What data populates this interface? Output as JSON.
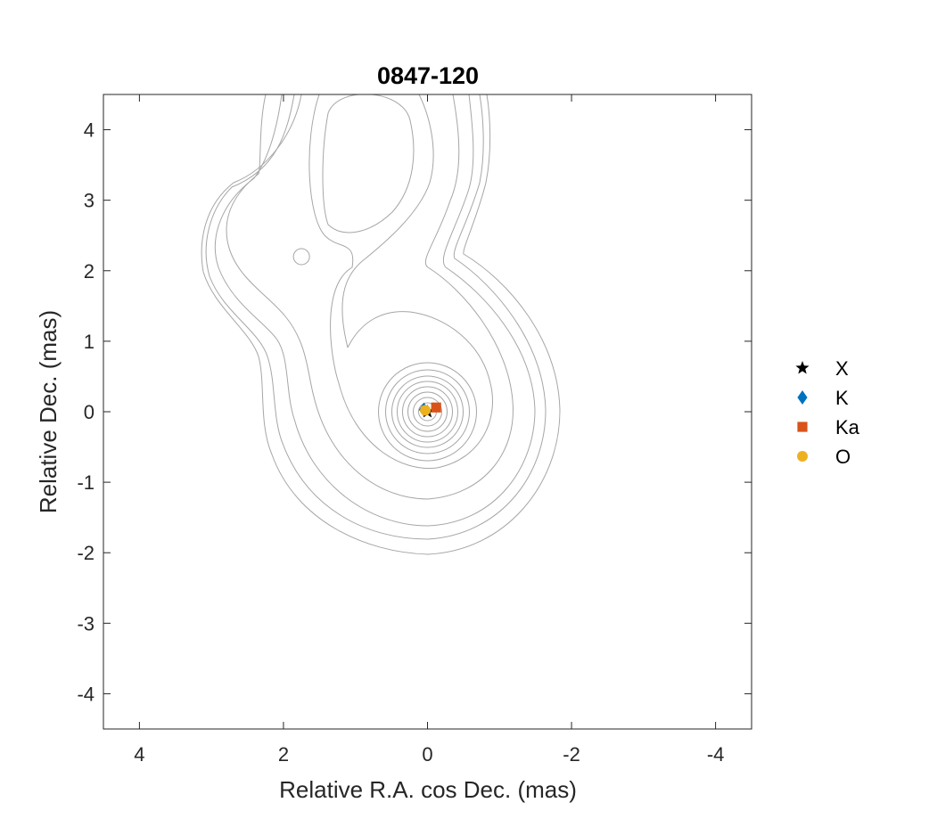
{
  "chart_data": {
    "type": "scatter",
    "title": "0847-120",
    "xlabel": "Relative R.A. cos Dec. (mas)",
    "ylabel": "Relative Dec. (mas)",
    "xlim": [
      4.5,
      -4.5
    ],
    "ylim": [
      -4.5,
      4.5
    ],
    "x_reversed": true,
    "xticks": [
      4,
      2,
      0,
      -2,
      -4
    ],
    "yticks": [
      -4,
      -3,
      -2,
      -1,
      0,
      1,
      2,
      3,
      4
    ],
    "xtick_labels": [
      "4",
      "2",
      "0",
      "-2",
      "-4"
    ],
    "ytick_labels": [
      "-4",
      "-3",
      "-2",
      "-1",
      "0",
      "1",
      "2",
      "3",
      "4"
    ],
    "grid": false,
    "legend_position": "right",
    "background_contours": "Brightness contours of the source (grey lines)",
    "series": [
      {
        "name": "X",
        "marker": "star",
        "color": "#000000",
        "x": 0.0,
        "y": 0.0
      },
      {
        "name": "K",
        "marker": "diamond",
        "color": "#0072BD",
        "x": 0.05,
        "y": 0.03
      },
      {
        "name": "Ka",
        "marker": "square",
        "color": "#D95319",
        "x": -0.12,
        "y": 0.06
      },
      {
        "name": "O",
        "marker": "circle",
        "color": "#EDB120",
        "x": 0.03,
        "y": 0.02
      }
    ]
  }
}
